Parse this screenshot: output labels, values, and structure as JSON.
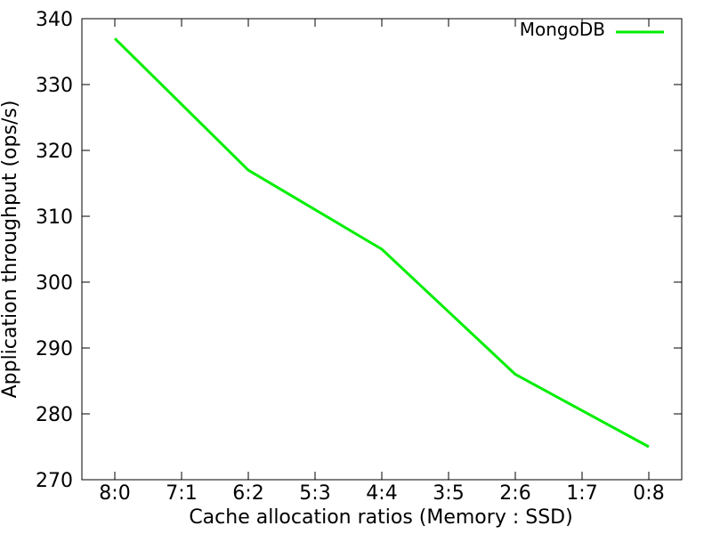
{
  "chart_data": {
    "type": "line",
    "title": "",
    "xlabel": "Cache allocation ratios (Memory : SSD)",
    "ylabel": "Application throughput (ops/s)",
    "categories": [
      "8:0",
      "7:1",
      "6:2",
      "5:3",
      "4:4",
      "3:5",
      "2:6",
      "1:7",
      "0:8"
    ],
    "ylim": [
      270,
      340
    ],
    "yticks": [
      270,
      280,
      290,
      300,
      310,
      320,
      330,
      340
    ],
    "grid": false,
    "legend_position": "top-right",
    "series": [
      {
        "name": "MongoDB",
        "color": "#00ee00",
        "values": [
          337,
          327,
          317,
          311,
          305,
          295.5,
          286,
          280.5,
          275
        ]
      }
    ]
  }
}
